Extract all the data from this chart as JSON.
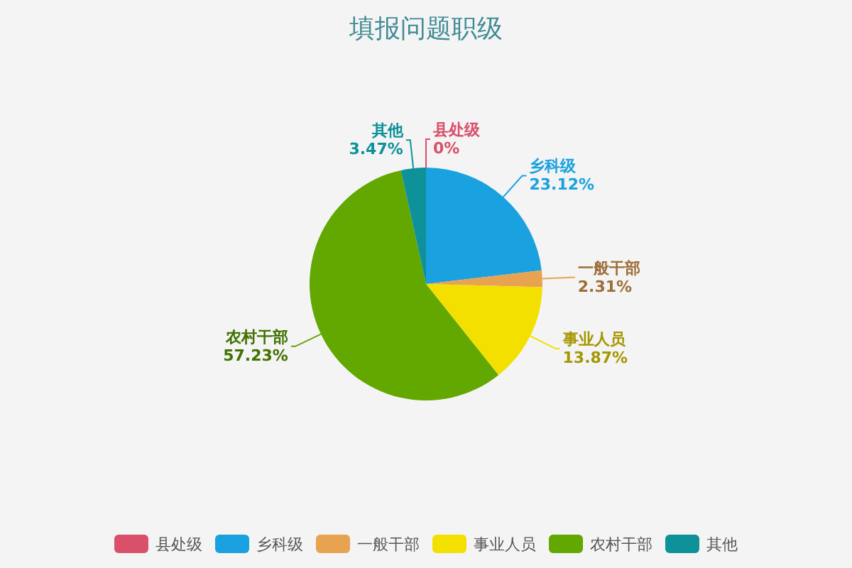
{
  "chart_data": {
    "type": "pie",
    "title": "填报问题职级",
    "categories": [
      "县处级",
      "乡科级",
      "一般干部",
      "事业人员",
      "农村干部",
      "其他"
    ],
    "values": [
      0,
      23.12,
      2.31,
      13.87,
      57.23,
      3.47
    ],
    "colors": [
      "#d9506a",
      "#1aa1e0",
      "#e8a350",
      "#f3e000",
      "#62a800",
      "#0e9199"
    ],
    "value_labels": [
      "0%",
      "23.12%",
      "2.31%",
      "13.87%",
      "57.23%",
      "3.47%"
    ],
    "legend": "bottom"
  }
}
